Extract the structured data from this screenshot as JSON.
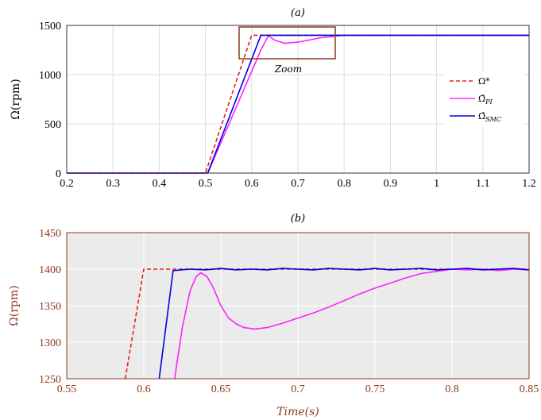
{
  "chart_data": [
    {
      "id": "a",
      "type": "line",
      "title": "(a)",
      "xlabel": "",
      "ylabel": "Ω(rpm)",
      "xlim": [
        0.2,
        1.2
      ],
      "ylim": [
        0,
        1500
      ],
      "xticks": [
        "0.2",
        "0.3",
        "0.4",
        "0.5",
        "0.6",
        "0.7",
        "0.8",
        "0.9",
        "1",
        "1.1",
        "1.2"
      ],
      "yticks": [
        "0",
        "500",
        "1000",
        "1500"
      ],
      "grid": true,
      "legend_position": "right",
      "annotation": "Zoom",
      "series": [
        {
          "name": "Ω*",
          "color": "#dd2222",
          "style": "dashed",
          "x": [
            0.2,
            0.5,
            0.6,
            0.62,
            1.2
          ],
          "y": [
            0,
            0,
            1400,
            1400,
            1400
          ]
        },
        {
          "name": "Ω̂PI",
          "color": "#ff22ff",
          "style": "solid",
          "x": [
            0.2,
            0.505,
            0.62,
            0.636,
            0.65,
            0.672,
            0.7,
            0.75,
            0.8,
            0.85,
            1.2
          ],
          "y": [
            0,
            0,
            1250,
            1395,
            1350,
            1318,
            1330,
            1375,
            1400,
            1400,
            1400
          ]
        },
        {
          "name": "Ω̂SMC",
          "color": "#0000dd",
          "style": "solid",
          "x": [
            0.2,
            0.505,
            0.62,
            0.63,
            1.2
          ],
          "y": [
            0,
            0,
            1400,
            1400,
            1400
          ]
        }
      ]
    },
    {
      "id": "b",
      "type": "line",
      "title": "(b)",
      "xlabel": "Time(s)",
      "ylabel": "Ω(rpm)",
      "xlim": [
        0.55,
        0.85
      ],
      "ylim": [
        1250,
        1450
      ],
      "xticks": [
        "0.55",
        "0.6",
        "0.65",
        "0.7",
        "0.75",
        "0.8",
        "0.85"
      ],
      "yticks": [
        "1250",
        "1300",
        "1350",
        "1400",
        "1450"
      ],
      "grid": true,
      "series": [
        {
          "name": "Ω*",
          "color": "#dd2222",
          "style": "dashed",
          "x": [
            0.588,
            0.6,
            0.85
          ],
          "y": [
            1250,
            1400,
            1400
          ]
        },
        {
          "name": "Ω̂PI",
          "color": "#ff22ff",
          "style": "solid",
          "x": [
            0.62,
            0.625,
            0.63,
            0.634,
            0.637,
            0.641,
            0.645,
            0.65,
            0.655,
            0.66,
            0.665,
            0.672,
            0.68,
            0.69,
            0.7,
            0.71,
            0.72,
            0.73,
            0.74,
            0.75,
            0.76,
            0.77,
            0.78,
            0.79,
            0.8,
            0.81,
            0.82,
            0.83,
            0.84,
            0.85
          ],
          "y": [
            1250,
            1320,
            1370,
            1390,
            1395,
            1390,
            1375,
            1350,
            1333,
            1325,
            1320,
            1318,
            1320,
            1326,
            1333,
            1340,
            1348,
            1357,
            1366,
            1374,
            1381,
            1388,
            1394,
            1397,
            1400,
            1399,
            1400,
            1398,
            1400,
            1399
          ]
        },
        {
          "name": "Ω̂SMC",
          "color": "#0000dd",
          "style": "solid",
          "x": [
            0.61,
            0.619,
            0.63,
            0.64,
            0.65,
            0.66,
            0.67,
            0.68,
            0.69,
            0.7,
            0.71,
            0.72,
            0.73,
            0.74,
            0.75,
            0.76,
            0.77,
            0.78,
            0.79,
            0.8,
            0.81,
            0.82,
            0.83,
            0.84,
            0.85
          ],
          "y": [
            1250,
            1398,
            1400,
            1399,
            1401,
            1399,
            1400,
            1399,
            1401,
            1400,
            1399,
            1401,
            1400,
            1399,
            1401,
            1399,
            1400,
            1401,
            1399,
            1400,
            1401,
            1399,
            1400,
            1401,
            1399
          ]
        }
      ]
    }
  ]
}
